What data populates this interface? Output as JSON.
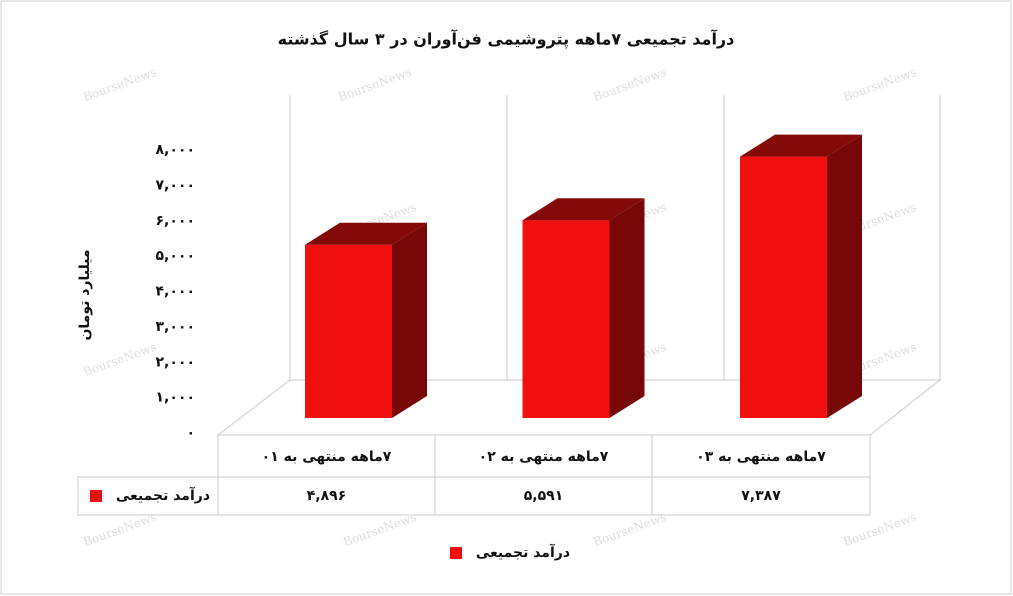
{
  "chart_data": {
    "type": "bar",
    "title": "درآمد تجمیعی ۷ماهه پتروشیمی فن‌آوران در ۳ سال گذشته",
    "y_label": "میلیارد تومان",
    "watermark": "BourseNews",
    "categories": [
      "۷ماهه منتهی به ۰۱",
      "۷ماهه منتهی به ۰۲",
      "۷ماهه منتهی به ۰۳"
    ],
    "series": [
      {
        "name": "درآمد تجمیعی",
        "color": "#f01010",
        "values": [
          4896,
          5591,
          7387
        ],
        "value_labels": [
          "۴,۸۹۶",
          "۵,۵۹۱",
          "۷,۳۸۷"
        ]
      }
    ],
    "ylim": [
      0,
      8000
    ],
    "yticks": [
      {
        "value": 0,
        "label": "۰"
      },
      {
        "value": 1000,
        "label": "۱,۰۰۰"
      },
      {
        "value": 2000,
        "label": "۲,۰۰۰"
      },
      {
        "value": 3000,
        "label": "۳,۰۰۰"
      },
      {
        "value": 4000,
        "label": "۴,۰۰۰"
      },
      {
        "value": 5000,
        "label": "۵,۰۰۰"
      },
      {
        "value": 6000,
        "label": "۶,۰۰۰"
      },
      {
        "value": 7000,
        "label": "۷,۰۰۰"
      },
      {
        "value": 8000,
        "label": "۸,۰۰۰"
      }
    ],
    "legend": "bottom",
    "data_table": true
  }
}
